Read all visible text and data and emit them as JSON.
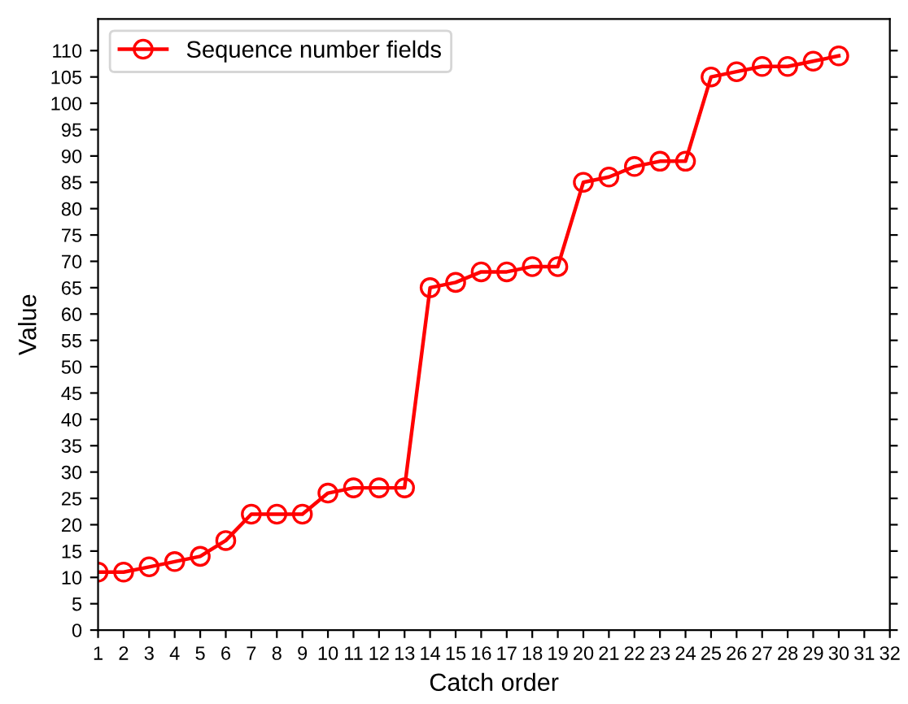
{
  "chart_data": {
    "type": "line",
    "xlabel": "Catch order",
    "ylabel": "Value",
    "x": [
      1,
      2,
      3,
      4,
      5,
      6,
      7,
      8,
      9,
      10,
      11,
      12,
      13,
      14,
      15,
      16,
      17,
      18,
      19,
      20,
      21,
      22,
      23,
      24,
      25,
      26,
      27,
      28,
      29,
      30
    ],
    "series": [
      {
        "name": "Sequence number fields",
        "color": "#ff0000",
        "values": [
          11,
          11,
          12,
          13,
          14,
          17,
          22,
          22,
          22,
          26,
          27,
          27,
          27,
          65,
          66,
          68,
          68,
          69,
          69,
          85,
          86,
          88,
          89,
          89,
          105,
          106,
          107,
          107,
          108,
          109
        ]
      }
    ],
    "xlim": [
      1,
      32
    ],
    "xticks": [
      1,
      2,
      3,
      4,
      5,
      6,
      7,
      8,
      9,
      10,
      11,
      12,
      13,
      14,
      15,
      16,
      17,
      18,
      19,
      20,
      21,
      22,
      23,
      24,
      25,
      26,
      27,
      28,
      29,
      30,
      31,
      32
    ],
    "ylim": [
      0,
      116
    ],
    "yticks": [
      0,
      5,
      10,
      15,
      20,
      25,
      30,
      35,
      40,
      45,
      50,
      55,
      60,
      65,
      70,
      75,
      80,
      85,
      90,
      95,
      100,
      105,
      110
    ],
    "marker": "circle",
    "line_style": "solid",
    "legend": "top left",
    "grid": false
  }
}
